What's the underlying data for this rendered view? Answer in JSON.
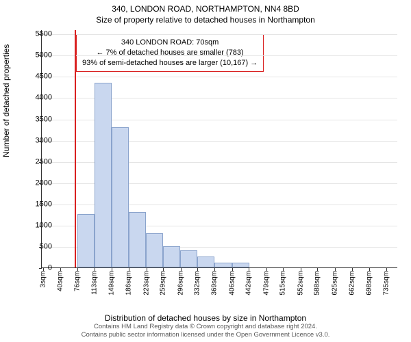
{
  "chart": {
    "type": "histogram",
    "title": "340, LONDON ROAD, NORTHAMPTON, NN4 8BD",
    "subtitle": "Size of property relative to detached houses in Northampton",
    "ylabel": "Number of detached properties",
    "xlabel": "Distribution of detached houses by size in Northampton",
    "background_color": "#ffffff",
    "grid_color": "#e5e5e5",
    "axis_color": "#333333",
    "bar_fill": "#c9d7ef",
    "bar_border": "#8aa3cc",
    "marker_line_color": "#d92020",
    "annotation_border": "#d92020",
    "title_fontsize": 12,
    "label_fontsize": 12,
    "tick_fontsize": 11,
    "xtick_fontsize": 10,
    "xlim": [
      0,
      760
    ],
    "ylim": [
      0,
      5600
    ],
    "ytick_step": 500,
    "yticks": [
      0,
      500,
      1000,
      1500,
      2000,
      2500,
      3000,
      3500,
      4000,
      4500,
      5000,
      5500
    ],
    "xticks": [
      3,
      40,
      76,
      113,
      149,
      186,
      223,
      259,
      296,
      332,
      369,
      406,
      442,
      479,
      515,
      552,
      588,
      625,
      662,
      698,
      735
    ],
    "xtick_labels": [
      "3sqm",
      "40sqm",
      "76sqm",
      "113sqm",
      "149sqm",
      "186sqm",
      "223sqm",
      "259sqm",
      "296sqm",
      "332sqm",
      "369sqm",
      "406sqm",
      "442sqm",
      "479sqm",
      "515sqm",
      "552sqm",
      "588sqm",
      "625sqm",
      "662sqm",
      "698sqm",
      "735sqm"
    ],
    "bin_start": 3,
    "bin_width": 36.6,
    "bar_values": [
      0,
      0,
      1250,
      4350,
      3300,
      1300,
      800,
      500,
      400,
      250,
      110,
      120,
      0,
      0,
      0,
      0,
      0,
      0,
      0,
      0
    ],
    "marker_x": 70,
    "annotation": {
      "line1": "340 LONDON ROAD: 70sqm",
      "line2": "← 7% of detached houses are smaller (783)",
      "line3": "93% of semi-detached houses are larger (10,167) →"
    },
    "footer_line1": "Contains HM Land Registry data © Crown copyright and database right 2024.",
    "footer_line2": "Contains public sector information licensed under the Open Government Licence v3.0."
  }
}
